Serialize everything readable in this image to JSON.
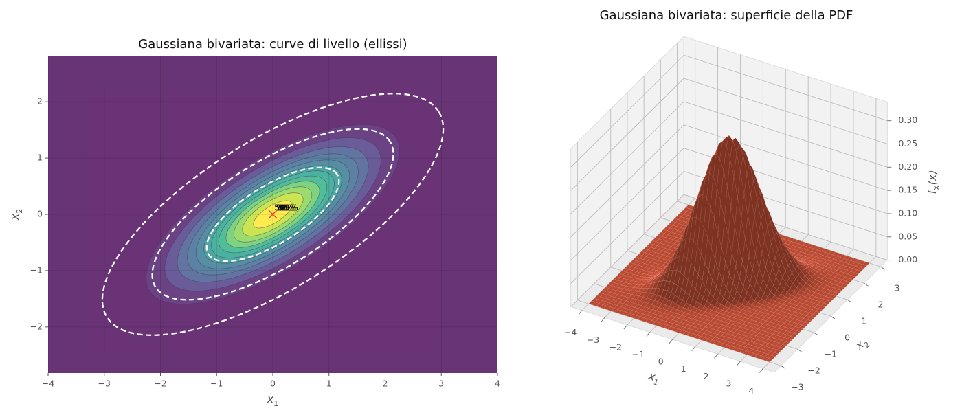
{
  "chart_data": [
    {
      "type": "contour",
      "title": "Gaussiana bivariata: curve di livello (ellissi)",
      "xlabel": {
        "main": "x",
        "sub": "1"
      },
      "ylabel": {
        "main": "x",
        "sub": "2"
      },
      "xlim": [
        -4,
        4
      ],
      "ylim": [
        -2.82,
        2.82
      ],
      "xticks": [
        {
          "value": -4,
          "label": "−4"
        },
        {
          "value": -3,
          "label": "−3"
        },
        {
          "value": -2,
          "label": "−2"
        },
        {
          "value": -1,
          "label": "−1"
        },
        0,
        1,
        2,
        3,
        4
      ],
      "yticks": [
        {
          "value": -2,
          "label": "−2"
        },
        {
          "value": -1,
          "label": "−1"
        },
        0,
        1,
        2
      ],
      "grid": true,
      "mean": [
        0,
        0
      ],
      "cov": [
        [
          1,
          0.5
        ],
        [
          0.5,
          0.5
        ]
      ],
      "levels": [
        0,
        0.025,
        0.05,
        0.075,
        0.1,
        0.125,
        0.15,
        0.175,
        0.2,
        0.225,
        0.25,
        0.275,
        0.3
      ],
      "colors": [
        "#440154",
        "#471365",
        "#463480",
        "#3b528b",
        "#33638d",
        "#2c728e",
        "#21918c",
        "#1fa088",
        "#28ae80",
        "#5ec962",
        "#84d44b",
        "#bddf26",
        "#fde725"
      ],
      "alpha": 0.8,
      "confidence": {
        "values": [
          0.5,
          0.9,
          0.99
        ],
        "value_labels": [
          "50%",
          "90%",
          "99%"
        ],
        "color": "#ffffff"
      },
      "marker_color": "#e24a33"
    },
    {
      "type": "surface",
      "title": "Gaussiana bivariata: superficie della PDF",
      "xlabel": {
        "main": "x",
        "sub": "1"
      },
      "ylabel": {
        "main": "x",
        "sub": "2"
      },
      "zlabel": {
        "main": "f",
        "sub": "X",
        "tail": "(x)"
      },
      "xlim": [
        -4,
        4
      ],
      "ylim": [
        -3,
        3
      ],
      "zlim": [
        0,
        0.34
      ],
      "xticks": [
        {
          "value": -4,
          "label": "−4"
        },
        {
          "value": -3,
          "label": "−3"
        },
        {
          "value": -2,
          "label": "−2"
        },
        {
          "value": -1,
          "label": "−1"
        },
        0,
        1,
        2,
        3,
        4
      ],
      "yticks": [
        {
          "value": -3,
          "label": "−3"
        },
        {
          "value": -2,
          "label": "−2"
        },
        {
          "value": -1,
          "label": "−1"
        },
        0,
        1,
        2,
        3
      ],
      "zticks": [
        {
          "value": 0,
          "label": "0.00"
        },
        {
          "value": 0.05,
          "label": "0.05"
        },
        {
          "value": 0.1,
          "label": "0.10"
        },
        {
          "value": 0.15,
          "label": "0.15"
        },
        {
          "value": 0.2,
          "label": "0.20"
        },
        {
          "value": 0.25,
          "label": "0.25"
        },
        {
          "value": 0.3,
          "label": "0.30"
        }
      ],
      "mean": [
        0,
        0
      ],
      "cov": [
        [
          1,
          0.5
        ],
        [
          0.5,
          0.5
        ]
      ],
      "color": "#cc5036"
    }
  ]
}
